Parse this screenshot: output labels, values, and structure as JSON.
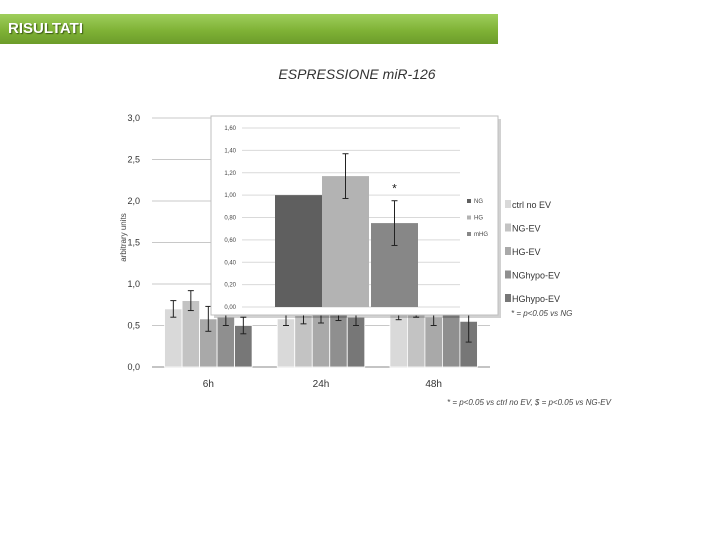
{
  "header": {
    "title": "RISULTATI"
  },
  "slide_title": "ESPRESSIONE miR-126",
  "notes": {
    "inset_note": "* = p<0.05 vs NG",
    "main_note": "* = p<0.05 vs ctrl no EV, $ = p<0.05 vs NG-EV"
  },
  "chart_data": [
    {
      "type": "bar",
      "categories": [
        "6h",
        "24h",
        "48h"
      ],
      "ylabel": "arbitrary units",
      "ylim": [
        0,
        3
      ],
      "y_ticks": [
        "0,0",
        "0,5",
        "1,0",
        "1,5",
        "2,0",
        "2,5",
        "3,0"
      ],
      "legend_position": "right",
      "series": [
        {
          "name": "ctrl no EV",
          "color": "#d9d9d9",
          "values": [
            0.7,
            0.58,
            0.66
          ],
          "errors": [
            0.1,
            0.08,
            0.09
          ]
        },
        {
          "name": "NG-EV",
          "color": "#c3c3c3",
          "values": [
            0.8,
            0.62,
            0.7
          ],
          "errors": [
            0.12,
            0.1,
            0.1
          ]
        },
        {
          "name": "HG-EV",
          "color": "#a9a9a9",
          "values": [
            0.58,
            0.65,
            0.6
          ],
          "errors": [
            0.15,
            0.12,
            0.1
          ]
        },
        {
          "name": "NGhypo-EV",
          "color": "#8f8f8f",
          "values": [
            0.6,
            0.66,
            0.8
          ],
          "errors": [
            0.1,
            0.1,
            0.12
          ]
        },
        {
          "name": "HGhypo-EV",
          "color": "#777777",
          "values": [
            0.5,
            0.6,
            0.55
          ],
          "errors": [
            0.1,
            0.1,
            0.25
          ]
        }
      ]
    },
    {
      "type": "bar",
      "categories": [
        "NG",
        "HG",
        "mHG"
      ],
      "ylim": [
        0,
        1.6
      ],
      "y_ticks": [
        "0,00",
        "0,20",
        "0,40",
        "0,60",
        "0,80",
        "1,00",
        "1,20",
        "1,40",
        "1,60"
      ],
      "legend_position": "right",
      "legend": [
        "NG",
        "HG",
        "mHG"
      ],
      "colors": [
        "#5f5f5f",
        "#b3b3b3",
        "#878787"
      ],
      "values": [
        1.0,
        1.17,
        0.75
      ],
      "errors": [
        0.0,
        0.2,
        0.2
      ],
      "annotations": [
        {
          "category": "mHG",
          "text": "*"
        }
      ]
    }
  ]
}
